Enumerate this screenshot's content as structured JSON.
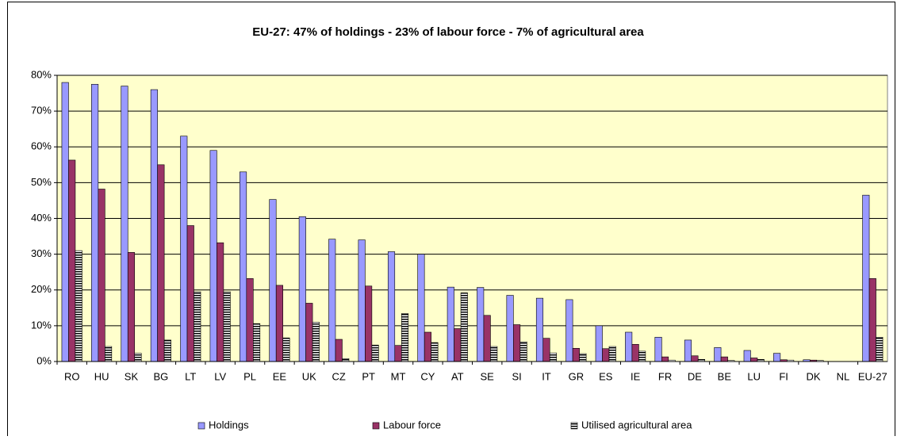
{
  "chart_data": {
    "type": "bar",
    "title": "EU-27: 47% of holdings - 23% of labour force - 7% of agricultural area",
    "categories": [
      "RO",
      "HU",
      "SK",
      "BG",
      "LT",
      "LV",
      "PL",
      "EE",
      "UK",
      "CZ",
      "PT",
      "MT",
      "CY",
      "AT",
      "SE",
      "SI",
      "IT",
      "GR",
      "ES",
      "IE",
      "FR",
      "DE",
      "BE",
      "LU",
      "FI",
      "DK",
      "NL",
      "EU-27"
    ],
    "series": [
      {
        "name": "Holdings",
        "color": "#9999ff",
        "values": [
          78,
          77.5,
          77,
          76,
          63,
          59,
          53,
          45.3,
          40.5,
          34.2,
          34,
          30.7,
          30,
          20.8,
          20.7,
          18.5,
          17.7,
          17.3,
          10,
          8.2,
          6.8,
          6,
          3.9,
          3.1,
          2.3,
          0.5,
          0,
          46.5
        ]
      },
      {
        "name": "Labour force",
        "color": "#993366",
        "values": [
          56.3,
          48.2,
          30.5,
          55,
          38,
          33.2,
          23.2,
          21.3,
          16.3,
          6.2,
          21.1,
          4.5,
          8.2,
          9.2,
          12.9,
          10.3,
          6.5,
          3.7,
          3.6,
          4.8,
          1.3,
          1.6,
          1.3,
          1,
          0.5,
          0.4,
          0,
          23.2
        ]
      },
      {
        "name": "Utilised agricultural area",
        "color": "#ffffff",
        "pattern": "horizontal-stripes",
        "values": [
          31,
          4.2,
          2.3,
          6,
          19.5,
          19.5,
          10.6,
          6.6,
          11,
          0.8,
          4.6,
          13.4,
          5.3,
          19.2,
          4.2,
          5.5,
          2.4,
          2.2,
          4.2,
          2.9,
          0.4,
          0.6,
          0.3,
          0.6,
          0.4,
          0.3,
          0,
          6.8
        ]
      }
    ],
    "ylim": [
      0,
      80
    ],
    "yticks": [
      {
        "value": 0,
        "label": "0%"
      },
      {
        "value": 10,
        "label": "10%"
      },
      {
        "value": 20,
        "label": "20%"
      },
      {
        "value": 30,
        "label": "30%"
      },
      {
        "value": 40,
        "label": "40%"
      },
      {
        "value": 50,
        "label": "50%"
      },
      {
        "value": 60,
        "label": "60%"
      },
      {
        "value": 70,
        "label": "70%"
      },
      {
        "value": 80,
        "label": "80%"
      }
    ],
    "grid": true,
    "legend": "bottom"
  }
}
